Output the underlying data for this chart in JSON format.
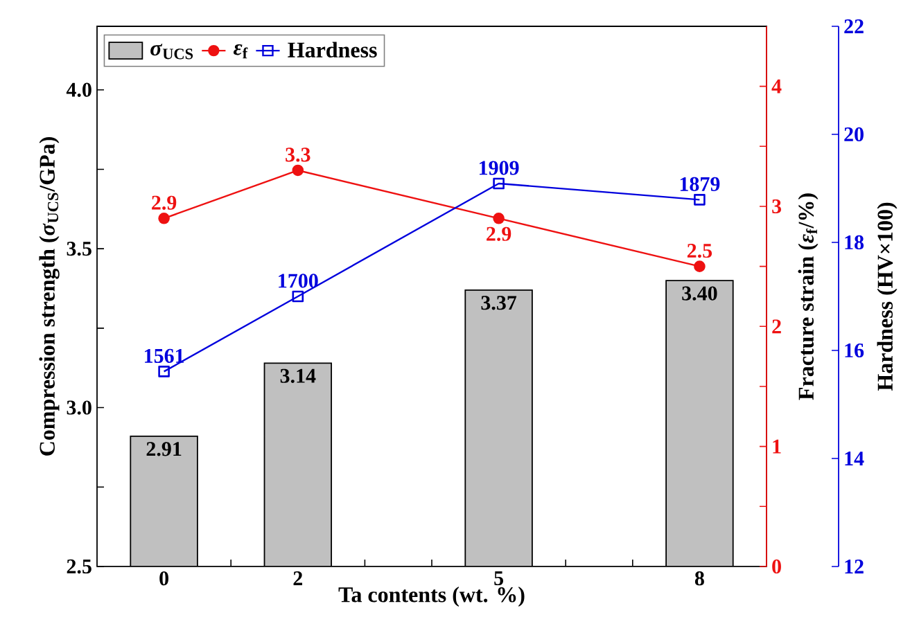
{
  "chart_data": {
    "type": "bar",
    "xlabel": "Ta contents (wt. %)",
    "ylabel": "Compression strength (*σ*$_{UCS}$/GPa)",
    "y2label": "Fracture strain (*ε*$_{f}$/%)",
    "y3label": "Hardness  (HV×100)",
    "x": [
      0,
      2,
      5,
      8
    ],
    "xlim": [
      -1,
      9
    ],
    "xticks": [
      0,
      {
        "value": 1,
        "label": null
      },
      2,
      {
        "value": 3,
        "label": null
      },
      {
        "value": 4,
        "label": null
      },
      5,
      {
        "value": 6,
        "label": null
      },
      {
        "value": 7,
        "label": null
      },
      8
    ],
    "ylim": [
      2.5,
      4.2
    ],
    "yticks": [
      {
        "value": 2.5,
        "label": "2.5"
      },
      {
        "value": 2.75,
        "label": null
      },
      {
        "value": 3.0,
        "label": "3.0"
      },
      {
        "value": 3.25,
        "label": null
      },
      {
        "value": 3.5,
        "label": "3.5"
      },
      {
        "value": 3.75,
        "label": null
      },
      {
        "value": 4.0,
        "label": "4.0"
      }
    ],
    "y2lim": [
      0,
      4.5
    ],
    "y2ticks": [
      0,
      {
        "value": 0.5,
        "label": null
      },
      1,
      {
        "value": 1.5,
        "label": null
      },
      2,
      {
        "value": 2.5,
        "label": null
      },
      3,
      {
        "value": 3.5,
        "label": null
      },
      4
    ],
    "y3lim": [
      12,
      22
    ],
    "y3ticks": [
      12,
      14,
      16,
      18,
      20,
      22
    ],
    "annotations": [
      "1561",
      "1700",
      "1909",
      "1879"
    ],
    "legend": "top left",
    "series": [
      {
        "name": "*σ*$_{UCS}$",
        "color": "#c0c0c0",
        "values": [
          2.91,
          3.14,
          3.37,
          3.4
        ],
        "value_labels": [
          "2.91",
          "3.14",
          "3.37",
          "3.40"
        ]
      },
      {
        "name": "*ε*$_{f}$",
        "type": "line",
        "axis": "y2",
        "color": "#ee1111",
        "marker": "circle",
        "values": [
          2.9,
          3.3,
          2.9,
          2.5
        ],
        "value_labels": [
          "2.9",
          "3.3",
          "2.9",
          "2.5"
        ]
      },
      {
        "name": "Hardness",
        "type": "line",
        "axis": "y3",
        "color": "#0000dd",
        "marker": "square",
        "values": [
          15.61,
          17.0,
          19.09,
          18.79
        ]
      }
    ]
  }
}
